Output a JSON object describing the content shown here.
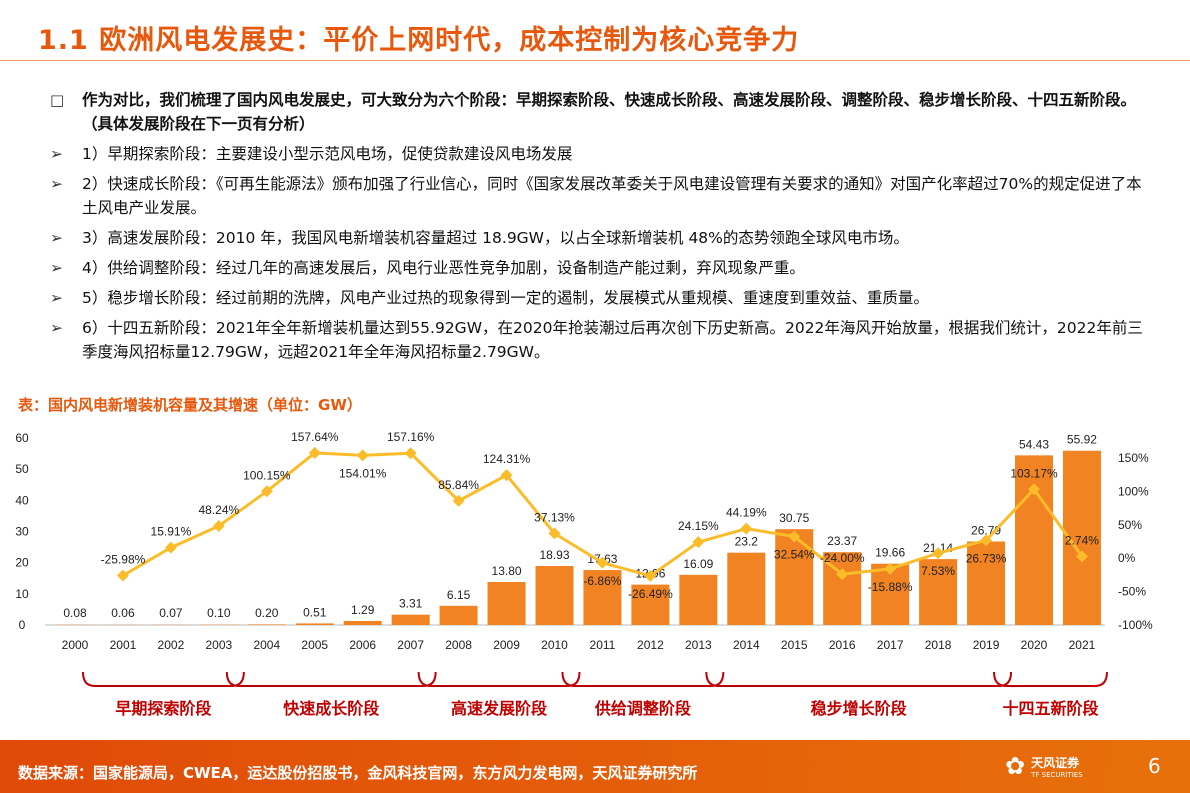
{
  "title": "1.1 欧洲风电发展史：平价上网时代，成本控制为核心竞争力",
  "bullets": [
    {
      "marker": "□",
      "text": "作为对比，我们梳理了国内风电发展史，可大致分为六个阶段：早期探索阶段、快速成长阶段、高速发展阶段、调整阶段、稳步增长阶段、十四五新阶段。（具体发展阶段在下一页有分析）"
    },
    {
      "marker": "➢",
      "text": "1）早期探索阶段：主要建设小型示范风电场，促使贷款建设风电场发展"
    },
    {
      "marker": "➢",
      "text": "2）快速成长阶段：《可再生能源法》颁布加强了行业信心，同时《国家发展改革委关于风电建设管理有关要求的通知》对国产化率超过70%的规定促进了本土风电产业发展。"
    },
    {
      "marker": "➢",
      "text": "3）高速发展阶段：2010 年，我国风电新增装机容量超过 18.9GW，以占全球新增装机 48%的态势领跑全球风电市场。"
    },
    {
      "marker": "➢",
      "text": "4）供给调整阶段：经过几年的高速发展后，风电行业恶性竞争加剧，设备制造产能过剩，弃风现象严重。"
    },
    {
      "marker": "➢",
      "text": "5）稳步增长阶段：经过前期的洗牌，风电产业过热的现象得到一定的遏制，发展模式从重规模、重速度到重效益、重质量。"
    },
    {
      "marker": "➢",
      "text": "6）十四五新阶段：2021年全年新增装机量达到55.92GW，在2020年抢装潮过后再次创下历史新高。2022年海风开始放量，根据我们统计，2022年前三季度海风招标量12.79GW，远超2021年全年海风招标量2.79GW。"
    }
  ],
  "caption": "表：国内风电新增装机容量及其增速（单位：GW）",
  "chart_data": {
    "type": "bar+line",
    "categories": [
      "2000",
      "2001",
      "2002",
      "2003",
      "2004",
      "2005",
      "2006",
      "2007",
      "2008",
      "2009",
      "2010",
      "2011",
      "2012",
      "2013",
      "2014",
      "2015",
      "2016",
      "2017",
      "2018",
      "2019",
      "2020",
      "2021"
    ],
    "series": [
      {
        "type": "bar",
        "axis": "left",
        "color": "#f28322",
        "values": [
          0.08,
          0.06,
          0.07,
          0.1,
          0.2,
          0.51,
          1.29,
          3.31,
          6.15,
          13.8,
          18.93,
          17.63,
          12.96,
          16.09,
          23.2,
          30.75,
          23.37,
          19.66,
          21.14,
          26.79,
          54.43,
          55.92
        ],
        "labels": [
          "0.08",
          "0.06",
          "0.07",
          "0.10",
          "0.20",
          "0.51",
          "1.29",
          "3.31",
          "6.15",
          "13.80",
          "18.93",
          "17.63",
          "12.96",
          "16.09",
          "23.2",
          "30.75",
          "23.37",
          "19.66",
          "21.14",
          "26.79",
          "54.43",
          "55.92"
        ]
      },
      {
        "type": "line",
        "axis": "right",
        "color": "#fbbc2a",
        "values": [
          null,
          -25.98,
          15.91,
          48.24,
          100.15,
          157.64,
          154.01,
          157.16,
          85.84,
          124.31,
          37.13,
          -6.86,
          -26.49,
          24.15,
          44.19,
          32.54,
          -24.0,
          -15.88,
          7.53,
          26.73,
          103.17,
          2.74
        ],
        "labels": [
          "",
          "-25.98%",
          "15.91%",
          "48.24%",
          "100.15%",
          "157.64%",
          "154.01%",
          "157.16%",
          "85.84%",
          "124.31%",
          "37.13%",
          "-6.86%",
          "-26.49%",
          "24.15%",
          "44.19%",
          "32.54%",
          "-24.00%",
          "-15.88%",
          "7.53%",
          "26.73%",
          "103.17%",
          "2.74%"
        ]
      }
    ],
    "left_axis": {
      "range": [
        0,
        60
      ],
      "ticks": [
        "0",
        "10",
        "20",
        "30",
        "40",
        "50",
        "60"
      ]
    },
    "right_axis": {
      "range": [
        -100,
        150
      ],
      "ticks": [
        "-100%",
        "-50%",
        "0%",
        "50%",
        "100%",
        "150%"
      ]
    },
    "grid": false,
    "stages": [
      {
        "label": "早期探索阶段",
        "from": "2001",
        "to": "2003"
      },
      {
        "label": "快速成长阶段",
        "from": "2004",
        "to": "2007"
      },
      {
        "label": "高速发展阶段",
        "from": "2008",
        "to": "2010"
      },
      {
        "label": "供给调整阶段",
        "from": "2011",
        "to": "2013"
      },
      {
        "label": "稳步增长阶段",
        "from": "2014",
        "to": "2019"
      },
      {
        "label": "十四五新阶段",
        "from": "2020",
        "to": "2021"
      }
    ]
  },
  "footer": {
    "source": "数据来源：国家能源局，CWEA，运达股份招股书，金风科技官网，东方风力发电网，天风证券研究所",
    "logo": "天风证券",
    "logo_sub": "TF SECURITIES",
    "page": "6"
  }
}
